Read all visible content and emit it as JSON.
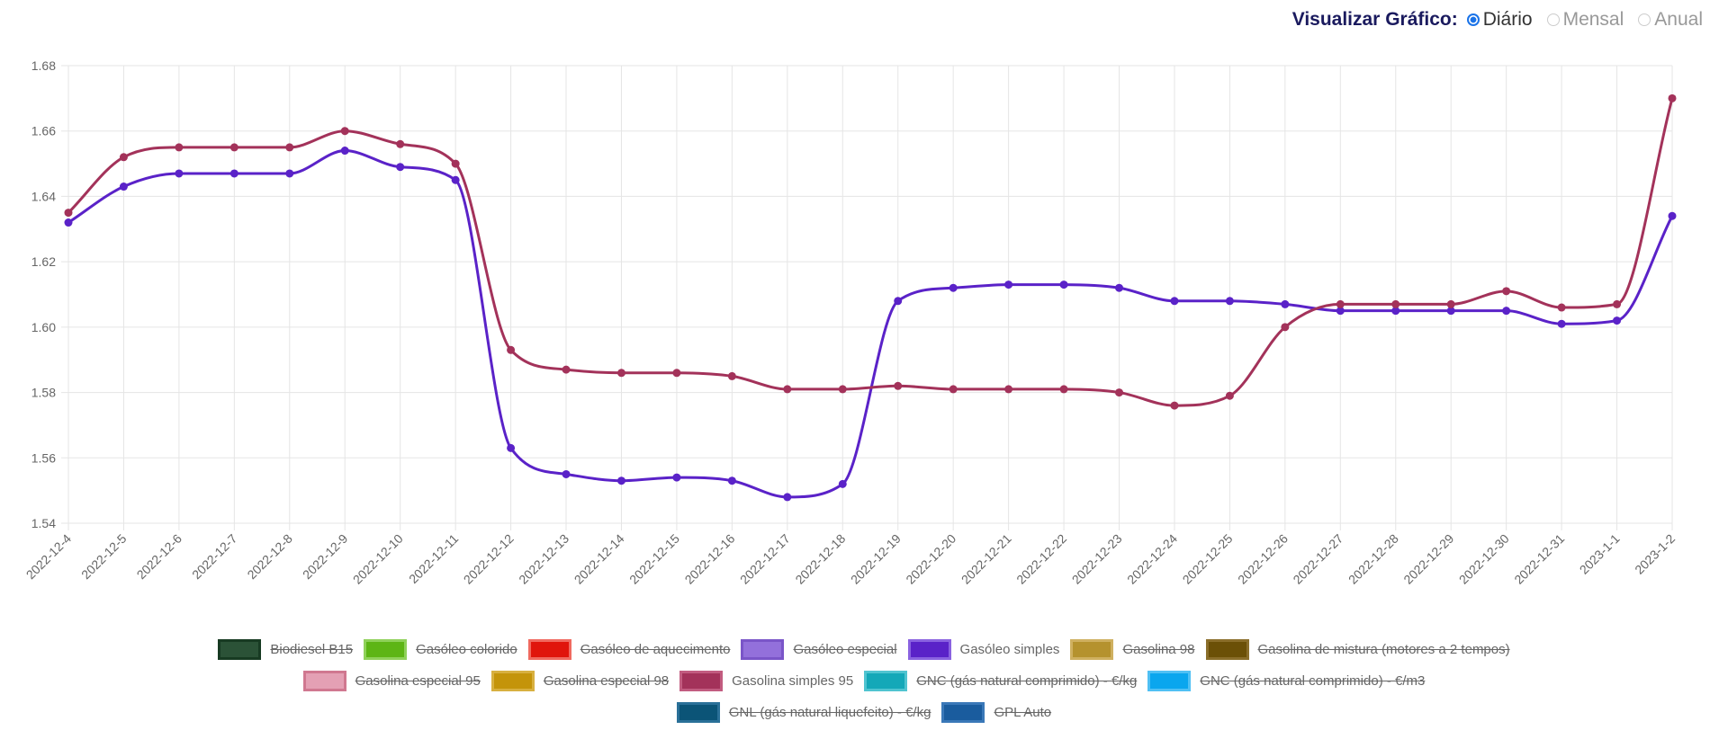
{
  "controls": {
    "label": "Visualizar Gráfico:",
    "options": [
      {
        "label": "Diário",
        "selected": true
      },
      {
        "label": "Mensal",
        "selected": false
      },
      {
        "label": "Anual",
        "selected": false
      }
    ]
  },
  "chart_data": {
    "type": "line",
    "ylim": [
      1.54,
      1.68
    ],
    "yticks": [
      "1.54",
      "1.56",
      "1.58",
      "1.60",
      "1.62",
      "1.64",
      "1.66",
      "1.68"
    ],
    "grid": true,
    "legend_position": "bottom",
    "x": [
      "2022-12-4",
      "2022-12-5",
      "2022-12-6",
      "2022-12-7",
      "2022-12-8",
      "2022-12-9",
      "2022-12-10",
      "2022-12-11",
      "2022-12-12",
      "2022-12-13",
      "2022-12-14",
      "2022-12-15",
      "2022-12-16",
      "2022-12-17",
      "2022-12-18",
      "2022-12-19",
      "2022-12-20",
      "2022-12-21",
      "2022-12-22",
      "2022-12-23",
      "2022-12-24",
      "2022-12-25",
      "2022-12-26",
      "2022-12-27",
      "2022-12-28",
      "2022-12-29",
      "2022-12-30",
      "2022-12-31",
      "2023-1-1",
      "2023-1-2"
    ],
    "series": [
      {
        "name": "Gasóleo simples",
        "color": "#5a22c8",
        "values": [
          1.632,
          1.643,
          1.647,
          1.647,
          1.647,
          1.654,
          1.649,
          1.645,
          1.563,
          1.555,
          1.553,
          1.554,
          1.553,
          1.548,
          1.552,
          1.608,
          1.612,
          1.613,
          1.613,
          1.612,
          1.608,
          1.608,
          1.607,
          1.605,
          1.605,
          1.605,
          1.605,
          1.601,
          1.602,
          1.634
        ]
      },
      {
        "name": "Gasolina simples 95",
        "color": "#a3325a",
        "values": [
          1.635,
          1.652,
          1.655,
          1.655,
          1.655,
          1.66,
          1.656,
          1.65,
          1.593,
          1.587,
          1.586,
          1.586,
          1.585,
          1.581,
          1.581,
          1.582,
          1.581,
          1.581,
          1.581,
          1.58,
          1.576,
          1.579,
          1.6,
          1.607,
          1.607,
          1.607,
          1.611,
          1.606,
          1.607,
          1.67
        ]
      }
    ],
    "legend": [
      [
        {
          "name": "Biodiesel B15",
          "color": "#2b5237",
          "border": "#173a22",
          "hidden": true
        },
        {
          "name": "Gasóleo colorido",
          "color": "#5db515",
          "border": "#8fd15a",
          "hidden": true
        },
        {
          "name": "Gasóleo de aquecimento",
          "color": "#e0150c",
          "border": "#f06a60",
          "hidden": true
        },
        {
          "name": "Gasóleo especial",
          "color": "#9370db",
          "border": "#7a55c8",
          "hidden": true
        },
        {
          "name": "Gasóleo simples",
          "color": "#5a22c8",
          "border": "#8a62e0",
          "hidden": false
        },
        {
          "name": "Gasolina 98",
          "color": "#b5922e",
          "border": "#cfb060",
          "hidden": true
        },
        {
          "name": "Gasolina de mistura (motores a 2 tempos)",
          "color": "#6b5007",
          "border": "#8a6e2a",
          "hidden": true
        }
      ],
      [
        {
          "name": "Gasolina especial 95",
          "color": "#e4a0b4",
          "border": "#d07890",
          "hidden": true
        },
        {
          "name": "Gasolina especial 98",
          "color": "#c4940a",
          "border": "#d8b040",
          "hidden": true
        },
        {
          "name": "Gasolina simples 95",
          "color": "#a3325a",
          "border": "#c25c80",
          "hidden": false
        },
        {
          "name": "GNC (gás natural comprimido) - €/kg",
          "color": "#14a8b8",
          "border": "#50c4d0",
          "hidden": true
        },
        {
          "name": "GNC (gás natural comprimido) - €/m3",
          "color": "#0aa6ee",
          "border": "#50c0f4",
          "hidden": true
        }
      ],
      [
        {
          "name": "GNL (gás natural liquefeito) - €/kg",
          "color": "#0b5477",
          "border": "#2a7098",
          "hidden": true
        },
        {
          "name": "GPL Auto",
          "color": "#1a5c9e",
          "border": "#3a78b8",
          "hidden": true
        }
      ]
    ]
  }
}
